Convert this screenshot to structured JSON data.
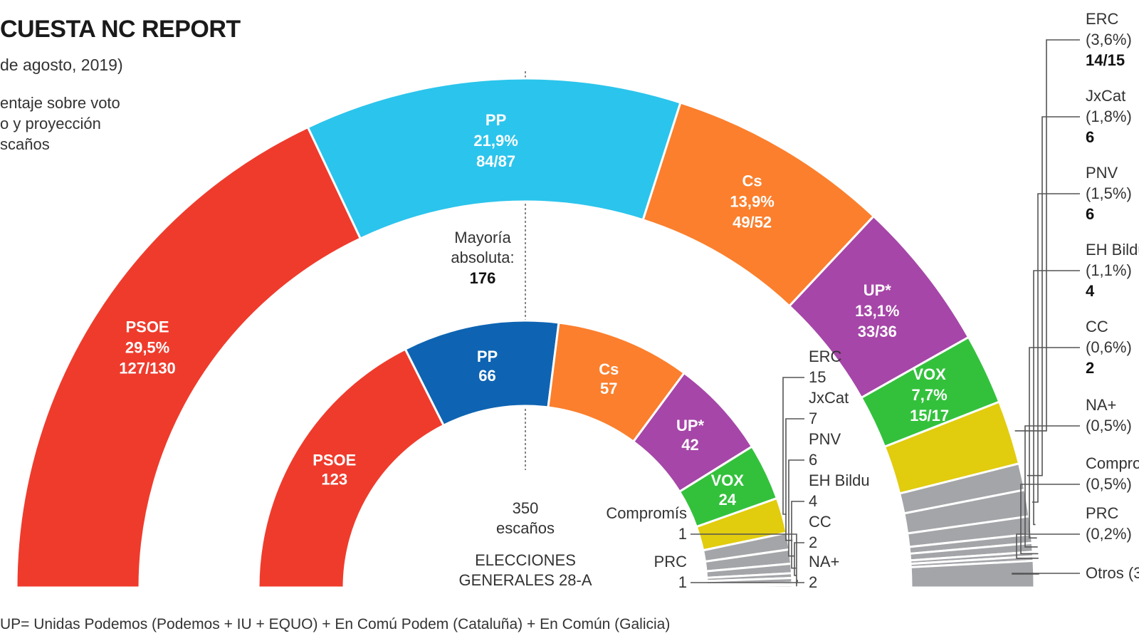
{
  "header": {
    "title": "CUESTA NC REPORT",
    "date": "de agosto, 2019)",
    "desc_lines": [
      "entaje sobre voto",
      "o y proyección",
      "scaños"
    ]
  },
  "center": {
    "majority_lines": [
      "Mayoría",
      "absoluta:"
    ],
    "majority_value": "176",
    "seats_lines": [
      "350",
      "escaños"
    ],
    "elections_lines": [
      "ELECCIONES",
      "GENERALES 28-A"
    ]
  },
  "footnote": "UP= Unidas Podemos (Podemos + IU + EQUO) + En Comú Podem (Cataluña) + En Común (Galicia)",
  "chart_data": [
    {
      "type": "parliament",
      "name_hidden": "outer",
      "parties": [
        {
          "name": "PSOE",
          "pct": "29,5%",
          "seats": "127/130",
          "value": 128.5,
          "color": "#ef3b2c",
          "label": true
        },
        {
          "name": "PP",
          "pct": "21,9%",
          "seats": "84/87",
          "value": 85.5,
          "color": "#2bc4ec",
          "label": true
        },
        {
          "name": "Cs",
          "pct": "13,9%",
          "seats": "49/52",
          "value": 50.5,
          "color": "#fb7f2d",
          "label": true
        },
        {
          "name": "UP*",
          "pct": "13,1%",
          "seats": "33/36",
          "value": 34.5,
          "color": "#a646a8",
          "label": true
        },
        {
          "name": "VOX",
          "pct": "7,7%",
          "seats": "15/17",
          "value": 16,
          "color": "#33c13c",
          "label": true
        },
        {
          "name": "ERC",
          "pct": "(3,6%)",
          "seats": "14/15",
          "value": 14.5,
          "color": "#e1cc0e",
          "label": false
        },
        {
          "name": "JxCat",
          "pct": "(1,8%)",
          "seats": "6",
          "value": 6,
          "color": "#a3a5a8",
          "label": false
        },
        {
          "name": "PNV",
          "pct": "(1,5%)",
          "seats": "6",
          "value": 6,
          "color": "#a3a5a8",
          "label": false
        },
        {
          "name": "EH Bildu",
          "pct": "(1,1%)",
          "seats": "4",
          "value": 4,
          "color": "#a3a5a8",
          "label": false
        },
        {
          "name": "CC",
          "pct": "(0,6%)",
          "seats": "2",
          "value": 2,
          "color": "#a3a5a8",
          "label": false
        },
        {
          "name": "NA+",
          "pct": "(0,5%)",
          "seats": "",
          "value": 2,
          "color": "#a3a5a8",
          "label": false
        },
        {
          "name": "Compro",
          "pct": "(0,5%)",
          "seats": "",
          "value": 1,
          "color": "#a3a5a8",
          "label": false
        },
        {
          "name": "PRC",
          "pct": "(0,2%)",
          "seats": "",
          "value": 1,
          "color": "#a3a5a8",
          "label": false
        },
        {
          "name": "Otros (3",
          "pct": "",
          "seats": "",
          "value": 6,
          "color": "#a3a5a8",
          "label": false
        }
      ]
    },
    {
      "type": "parliament",
      "name_hidden": "inner",
      "parties": [
        {
          "name": "PSOE",
          "seats": "123",
          "value": 123,
          "color": "#ef3b2c",
          "label": true
        },
        {
          "name": "PP",
          "seats": "66",
          "value": 66,
          "color": "#0e64b2",
          "label": true
        },
        {
          "name": "Cs",
          "seats": "57",
          "value": 57,
          "color": "#fb7f2d",
          "label": true
        },
        {
          "name": "UP*",
          "seats": "42",
          "value": 42,
          "color": "#a646a8",
          "label": true
        },
        {
          "name": "VOX",
          "seats": "24",
          "value": 24,
          "color": "#33c13c",
          "label": true
        },
        {
          "name": "ERC",
          "seats": "15",
          "value": 15,
          "color": "#e1cc0e",
          "label": false
        },
        {
          "name": "JxCat",
          "seats": "7",
          "value": 7,
          "color": "#a3a5a8",
          "label": false
        },
        {
          "name": "PNV",
          "seats": "6",
          "value": 6,
          "color": "#a3a5a8",
          "label": false
        },
        {
          "name": "EH Bildu",
          "seats": "4",
          "value": 4,
          "color": "#a3a5a8",
          "label": false
        },
        {
          "name": "CC",
          "seats": "2",
          "value": 2,
          "color": "#a3a5a8",
          "label": false
        },
        {
          "name": "NA+",
          "seats": "2",
          "value": 2,
          "color": "#a3a5a8",
          "label": false
        },
        {
          "name": "Compromís",
          "seats": "1",
          "value": 1,
          "color": "#a3a5a8",
          "label": false
        },
        {
          "name": "PRC",
          "seats": "1",
          "value": 1,
          "color": "#a3a5a8",
          "label": false
        }
      ]
    }
  ]
}
